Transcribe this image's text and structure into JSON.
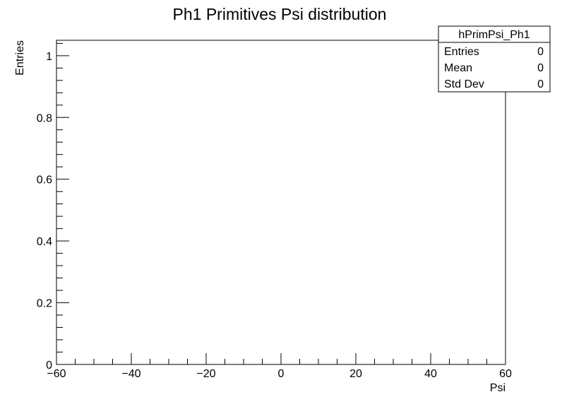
{
  "chart_data": {
    "type": "bar",
    "title": "Ph1 Primitives Psi distribution",
    "xlabel": "Psi",
    "ylabel": "Entries",
    "xlim": [
      -60,
      60
    ],
    "ylim": [
      0,
      1.05
    ],
    "x_ticks": [
      -60,
      -40,
      -20,
      0,
      20,
      40,
      60
    ],
    "x_tick_labels": [
      "−60",
      "−40",
      "−20",
      "0",
      "20",
      "40",
      "60"
    ],
    "y_ticks": [
      0,
      0.2,
      0.4,
      0.6,
      0.8,
      1
    ],
    "y_tick_labels": [
      "0",
      "0.2",
      "0.4",
      "0.6",
      "0.8",
      "1"
    ],
    "series": [],
    "grid": false,
    "stats_box": {
      "name": "hPrimPsi_Ph1",
      "rows": [
        {
          "label": "Entries",
          "value": "0"
        },
        {
          "label": "Mean",
          "value": "0"
        },
        {
          "label": "Std Dev",
          "value": "0"
        }
      ]
    }
  }
}
